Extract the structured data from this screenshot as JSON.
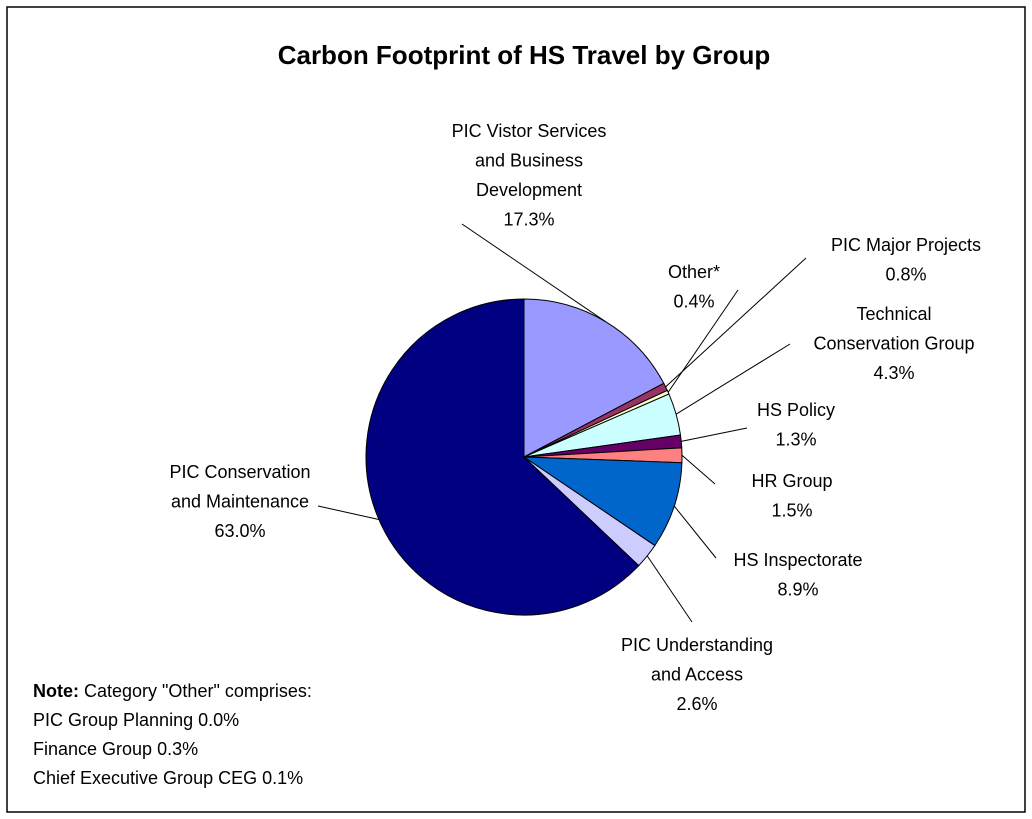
{
  "chart_data": {
    "type": "pie",
    "title": "Carbon Footprint of HS Travel by Group",
    "categories": [
      "PIC Vistor Services\nand Business\nDevelopment",
      "PIC Major Projects",
      "Other*",
      "Technical\nConservation Group",
      "HS Policy",
      "HR Group",
      "HS Inspectorate",
      "PIC Understanding\nand Access",
      "PIC Conservation\nand Maintenance"
    ],
    "values": [
      17.3,
      0.8,
      0.4,
      4.3,
      1.3,
      1.5,
      8.9,
      2.6,
      63.0
    ],
    "value_labels": [
      "17.3%",
      "0.8%",
      "0.4%",
      "4.3%",
      "1.3%",
      "1.5%",
      "8.9%",
      "2.6%",
      "63.0%"
    ],
    "colors": [
      "#9999ff",
      "#993366",
      "#ffffcc",
      "#ccffff",
      "#660066",
      "#ff8080",
      "#0066cc",
      "#ccccff",
      "#000080"
    ],
    "note": {
      "label": "Note:",
      "text": "Category \"Other\" comprises:",
      "items": [
        "PIC Group Planning 0.0%",
        "Finance Group 0.3%",
        "Chief Executive Group CEG 0.1%"
      ]
    }
  }
}
